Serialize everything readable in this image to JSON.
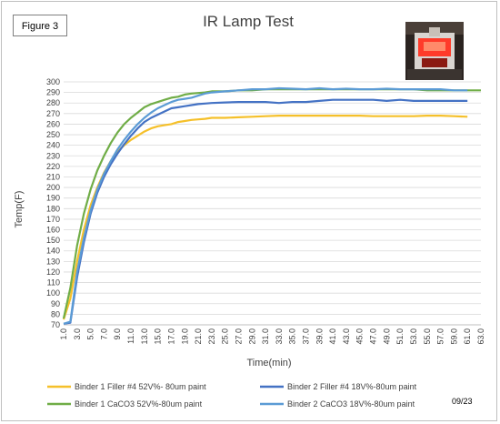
{
  "figure_label": "Figure 3",
  "date_stamp": "09/23",
  "chart_data": {
    "type": "line",
    "title": "IR Lamp Test",
    "xlabel": "Time(min)",
    "ylabel": "Temp(F)",
    "ylim": [
      70,
      300
    ],
    "ytick_step": 10,
    "x_ticks": [
      "1.0",
      "3.0",
      "5.0",
      "7.0",
      "9.0",
      "11.0",
      "13.0",
      "15.0",
      "17.0",
      "19.0",
      "21.0",
      "23.0",
      "25.0",
      "27.0",
      "29.0",
      "31.0",
      "33.0",
      "35.0",
      "37.0",
      "39.0",
      "41.0",
      "43.0",
      "45.0",
      "47.0",
      "49.0",
      "51.0",
      "53.0",
      "55.0",
      "57.0",
      "59.0",
      "61.0",
      "63.0"
    ],
    "xlim": [
      1,
      63
    ],
    "grid": true,
    "legend_position": "bottom",
    "series": [
      {
        "name": "Binder 1 Filler #4 52V%- 80um paint",
        "color": "#f5c02a",
        "x": [
          1,
          2,
          3,
          4,
          5,
          6,
          7,
          8,
          9,
          10,
          11,
          12,
          13,
          14,
          15,
          16,
          17,
          18,
          19,
          20,
          21,
          22,
          23,
          25,
          27,
          29,
          31,
          33,
          35,
          37,
          39,
          41,
          43,
          45,
          47,
          49,
          51,
          53,
          55,
          57,
          59,
          61
        ],
        "y": [
          75,
          95,
          130,
          160,
          183,
          200,
          214,
          225,
          234,
          240,
          245,
          249,
          253,
          256,
          258,
          259,
          260,
          262,
          263,
          264,
          264.5,
          265,
          266,
          266,
          266.5,
          267,
          267.5,
          268,
          268,
          268,
          268,
          268,
          268,
          268,
          267.5,
          267.5,
          267.5,
          267.5,
          268,
          268,
          267.5,
          267
        ]
      },
      {
        "name": "Binder 2 Filler #4 18V%-80um paint",
        "color": "#4472c4",
        "x": [
          1,
          2,
          3,
          4,
          5,
          6,
          7,
          8,
          9,
          10,
          11,
          12,
          13,
          14,
          15,
          16,
          17,
          18,
          19,
          20,
          21,
          22,
          23,
          25,
          27,
          29,
          31,
          33,
          35,
          37,
          39,
          41,
          43,
          45,
          47,
          49,
          51,
          53,
          55,
          57,
          59,
          61
        ],
        "y": [
          71,
          72,
          115,
          148,
          175,
          195,
          210,
          222,
          232,
          241,
          249,
          256,
          262,
          266,
          269,
          272,
          275,
          276,
          277,
          278,
          279,
          279.5,
          280,
          280.5,
          281,
          281,
          281,
          280,
          281,
          281,
          282,
          283,
          283,
          283,
          283,
          282,
          283,
          282,
          282,
          282,
          282,
          282
        ],
        "note": ""
      },
      {
        "name": "Binder 1 CaCO3 52V%-80um paint",
        "color": "#70ad47",
        "x": [
          1,
          2,
          3,
          4,
          5,
          6,
          7,
          8,
          9,
          10,
          11,
          12,
          13,
          14,
          15,
          16,
          17,
          18,
          19,
          20,
          21,
          22,
          23,
          25,
          27,
          29,
          31,
          33,
          35,
          37,
          39,
          41,
          43,
          45,
          47,
          49,
          51,
          53,
          55,
          57,
          59,
          61,
          63
        ],
        "y": [
          76,
          105,
          145,
          175,
          198,
          216,
          230,
          242,
          252,
          260,
          266,
          271,
          276,
          279,
          281,
          283,
          285,
          286,
          288,
          289,
          289.5,
          290,
          291,
          291,
          292,
          292,
          293,
          293,
          293,
          293,
          293,
          293,
          293,
          293,
          293,
          293,
          293,
          293,
          292,
          292,
          292,
          292,
          292
        ]
      },
      {
        "name": "Binder 2 CaCO3 18V%-80um paint",
        "color": "#5b9bd5",
        "x": [
          1,
          2,
          3,
          4,
          5,
          6,
          7,
          8,
          9,
          10,
          11,
          12,
          13,
          14,
          15,
          16,
          17,
          18,
          19,
          20,
          21,
          22,
          23,
          25,
          27,
          29,
          31,
          33,
          35,
          37,
          39,
          41,
          43,
          45,
          47,
          49,
          51,
          53,
          55,
          57,
          59,
          61
        ],
        "y": [
          71,
          73,
          120,
          152,
          178,
          198,
          213,
          225,
          236,
          245,
          253,
          260,
          266,
          271,
          275,
          278,
          281,
          283,
          284,
          285,
          287,
          289,
          290,
          291,
          292,
          293,
          293,
          294,
          293.5,
          293,
          294,
          293,
          293.5,
          293,
          293,
          293.5,
          293,
          293,
          293,
          293,
          292,
          292
        ]
      }
    ]
  }
}
